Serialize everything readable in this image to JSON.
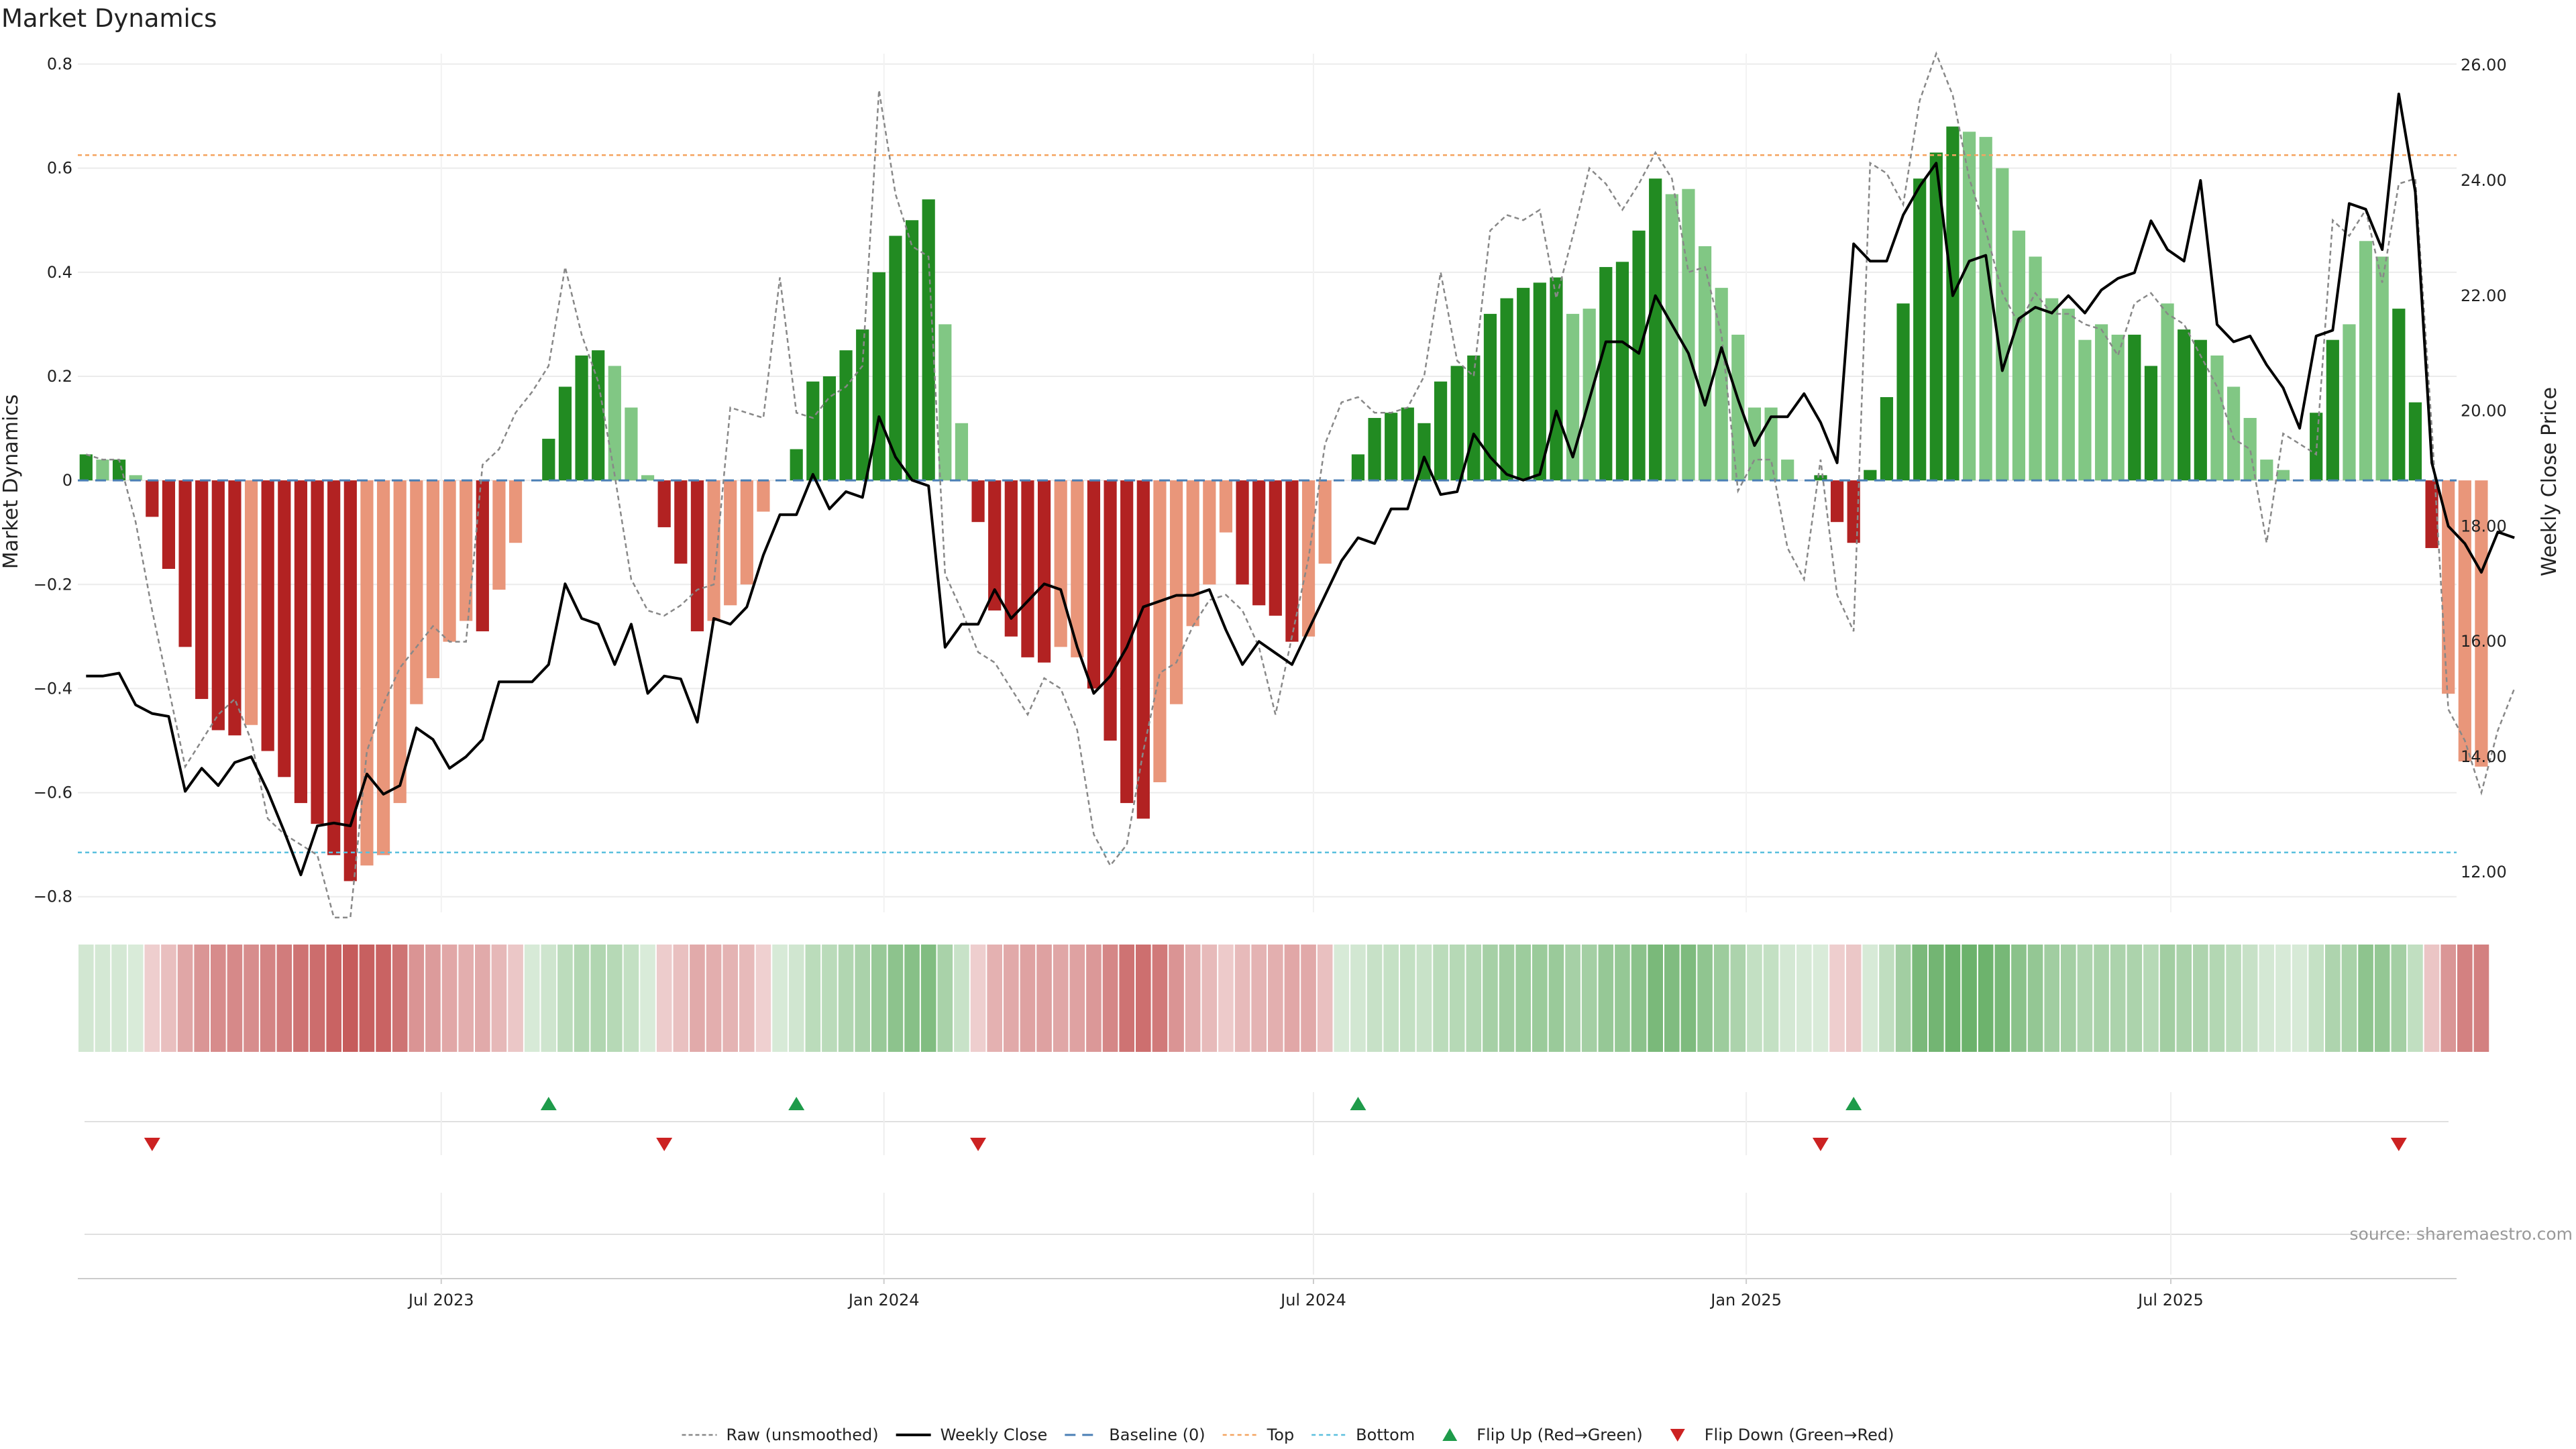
{
  "chart_data": {
    "type": "bar",
    "title": "Market Dynamics",
    "ylabel": "Market Dynamics",
    "y2label": "Weekly Close Price",
    "ylim": [
      -0.83,
      0.82
    ],
    "y2lim": [
      11.3,
      26.2
    ],
    "yticks": [
      "0.8",
      "0.6",
      "0.4",
      "0.2",
      "0",
      "−0.2",
      "−0.4",
      "−0.6",
      "−0.8"
    ],
    "yticks_values": [
      0.8,
      0.6,
      0.4,
      0.2,
      0,
      -0.2,
      -0.4,
      -0.6,
      -0.8
    ],
    "y2ticks": [
      "26.00",
      "24.00",
      "22.00",
      "20.00",
      "18.00",
      "16.00",
      "14.00",
      "12.00"
    ],
    "y2ticks_values": [
      26,
      24,
      22,
      20,
      18,
      16,
      14,
      12
    ],
    "xticks": [
      {
        "label": "Jul 2023",
        "week": 22
      },
      {
        "label": "Jan 2024",
        "week": 48.8
      },
      {
        "label": "Jul 2024",
        "week": 74.8
      },
      {
        "label": "Jan 2025",
        "week": 101
      },
      {
        "label": "Jul 2025",
        "week": 126.7
      }
    ],
    "n_weeks": 144,
    "top_line": 0.625,
    "bottom_line": -0.715,
    "grid": true,
    "legend_position": "bottom-center",
    "colors": {
      "strong_green": "#228b22",
      "light_green": "#81c784",
      "strong_red": "#b22222",
      "light_red": "#e9967a",
      "close_line": "#000000",
      "raw_line": "#888888",
      "baseline": "#4a7fb5",
      "top": "#f4a460",
      "bottom": "#5bc0de",
      "flip_up": "#1e9b4a",
      "flip_down": "#cc2222"
    },
    "histogram": [
      0.05,
      0.04,
      0.04,
      0.01,
      -0.07,
      -0.17,
      -0.32,
      -0.42,
      -0.48,
      -0.49,
      -0.47,
      -0.52,
      -0.57,
      -0.62,
      -0.66,
      -0.72,
      -0.77,
      -0.74,
      -0.72,
      -0.62,
      -0.43,
      -0.38,
      -0.31,
      -0.27,
      -0.29,
      -0.21,
      -0.12,
      0.0,
      0.08,
      0.18,
      0.24,
      0.25,
      0.22,
      0.14,
      0.01,
      -0.09,
      -0.16,
      -0.29,
      -0.27,
      -0.24,
      -0.2,
      -0.06,
      0.0,
      0.06,
      0.19,
      0.2,
      0.25,
      0.29,
      0.4,
      0.47,
      0.5,
      0.54,
      0.3,
      0.11,
      -0.08,
      -0.25,
      -0.3,
      -0.34,
      -0.35,
      -0.32,
      -0.34,
      -0.4,
      -0.5,
      -0.62,
      -0.65,
      -0.58,
      -0.43,
      -0.28,
      -0.2,
      -0.1,
      -0.2,
      -0.24,
      -0.26,
      -0.31,
      -0.3,
      -0.16,
      0.0,
      0.05,
      0.12,
      0.13,
      0.14,
      0.11,
      0.19,
      0.22,
      0.24,
      0.32,
      0.35,
      0.37,
      0.38,
      0.39,
      0.32,
      0.33,
      0.41,
      0.42,
      0.48,
      0.58,
      0.55,
      0.56,
      0.45,
      0.37,
      0.28,
      0.14,
      0.14,
      0.04,
      0.0,
      0.01,
      -0.08,
      -0.12,
      0.02,
      0.16,
      0.34,
      0.58,
      0.63,
      0.68,
      0.67,
      0.66,
      0.6,
      0.48,
      0.43,
      0.35,
      0.33,
      0.27,
      0.3,
      0.28,
      0.28,
      0.22,
      0.34,
      0.29,
      0.27,
      0.24,
      0.18,
      0.12,
      0.04,
      0.02,
      0.0,
      0.13,
      0.27,
      0.3,
      0.46,
      0.43,
      0.33,
      0.15,
      -0.13,
      -0.41,
      -0.54,
      -0.55
    ],
    "histogram_strength": [
      "s",
      "l",
      "s",
      "l",
      "s",
      "s",
      "s",
      "s",
      "s",
      "s",
      "l",
      "s",
      "s",
      "s",
      "s",
      "s",
      "s",
      "l",
      "l",
      "l",
      "l",
      "l",
      "l",
      "l",
      "s",
      "l",
      "l",
      "s",
      "s",
      "s",
      "s",
      "s",
      "l",
      "l",
      "l",
      "s",
      "s",
      "s",
      "l",
      "l",
      "l",
      "l",
      "s",
      "s",
      "s",
      "s",
      "s",
      "s",
      "s",
      "s",
      "s",
      "s",
      "l",
      "l",
      "s",
      "s",
      "s",
      "s",
      "s",
      "l",
      "l",
      "s",
      "s",
      "s",
      "s",
      "l",
      "l",
      "l",
      "l",
      "l",
      "s",
      "s",
      "s",
      "s",
      "l",
      "l",
      "s",
      "s",
      "s",
      "s",
      "s",
      "s",
      "s",
      "s",
      "s",
      "s",
      "s",
      "s",
      "s",
      "s",
      "l",
      "l",
      "s",
      "s",
      "s",
      "s",
      "l",
      "l",
      "l",
      "l",
      "l",
      "l",
      "l",
      "l",
      "s",
      "s",
      "s",
      "s",
      "s",
      "s",
      "s",
      "s",
      "s",
      "s",
      "l",
      "l",
      "l",
      "l",
      "l",
      "l",
      "l",
      "l",
      "l",
      "l",
      "s",
      "s",
      "l",
      "s",
      "s",
      "l",
      "l",
      "l",
      "l",
      "l",
      "s",
      "s",
      "s",
      "l",
      "l",
      "l",
      "s",
      "s",
      "s",
      "l"
    ],
    "weekly_close": [
      15.4,
      15.4,
      15.45,
      14.9,
      14.75,
      14.7,
      13.4,
      13.8,
      13.5,
      13.9,
      14.0,
      13.4,
      12.7,
      11.95,
      12.8,
      12.85,
      12.8,
      13.7,
      13.35,
      13.5,
      14.5,
      14.3,
      13.8,
      14.0,
      14.3,
      15.3,
      15.3,
      15.3,
      15.6,
      17.0,
      16.4,
      16.3,
      15.6,
      16.3,
      15.1,
      15.4,
      15.35,
      14.6,
      16.4,
      16.3,
      16.6,
      17.5,
      18.2,
      18.2,
      18.9,
      18.3,
      18.6,
      18.5,
      19.9,
      19.2,
      18.8,
      18.7,
      15.9,
      16.3,
      16.3,
      16.9,
      16.4,
      16.7,
      17.0,
      16.9,
      15.9,
      15.1,
      15.4,
      15.9,
      16.6,
      16.7,
      16.8,
      16.8,
      16.9,
      16.2,
      15.6,
      16.0,
      15.8,
      15.6,
      16.2,
      16.8,
      17.4,
      17.8,
      17.7,
      18.3,
      18.3,
      19.2,
      18.55,
      18.6,
      19.6,
      19.2,
      18.9,
      18.8,
      18.9,
      20.0,
      19.2,
      20.2,
      21.2,
      21.2,
      21.0,
      22.0,
      21.5,
      21.0,
      20.1,
      21.1,
      20.2,
      19.4,
      19.9,
      19.9,
      20.3,
      19.8,
      19.1,
      22.9,
      22.6,
      22.6,
      23.4,
      23.9,
      24.3,
      22.0,
      22.6,
      22.7,
      20.7,
      21.6,
      21.8,
      21.7,
      22.0,
      21.7,
      22.1,
      22.3,
      22.4,
      23.3,
      22.8,
      22.6,
      24.0,
      21.5,
      21.2,
      21.3,
      20.8,
      20.4,
      19.7,
      21.3,
      21.4,
      23.6,
      23.5,
      22.8,
      25.5,
      23.8,
      19.1,
      18.0,
      17.7,
      17.2,
      17.9,
      17.8
    ],
    "raw": [
      0.05,
      0.04,
      0.04,
      -0.08,
      -0.25,
      -0.4,
      -0.55,
      -0.5,
      -0.45,
      -0.42,
      -0.5,
      -0.65,
      -0.68,
      -0.7,
      -0.72,
      -0.84,
      -0.84,
      -0.52,
      -0.43,
      -0.36,
      -0.32,
      -0.28,
      -0.31,
      -0.31,
      0.03,
      0.06,
      0.13,
      0.17,
      0.22,
      0.41,
      0.28,
      0.19,
      0.01,
      -0.19,
      -0.25,
      -0.26,
      -0.24,
      -0.21,
      -0.2,
      0.14,
      0.13,
      0.12,
      0.39,
      0.13,
      0.12,
      0.16,
      0.18,
      0.22,
      0.75,
      0.55,
      0.45,
      0.43,
      -0.18,
      -0.25,
      -0.33,
      -0.35,
      -0.4,
      -0.45,
      -0.38,
      -0.4,
      -0.48,
      -0.68,
      -0.74,
      -0.7,
      -0.52,
      -0.37,
      -0.35,
      -0.28,
      -0.23,
      -0.22,
      -0.25,
      -0.32,
      -0.45,
      -0.3,
      -0.15,
      0.07,
      0.15,
      0.16,
      0.13,
      0.13,
      0.14,
      0.2,
      0.4,
      0.23,
      0.2,
      0.48,
      0.51,
      0.5,
      0.52,
      0.35,
      0.47,
      0.6,
      0.57,
      0.52,
      0.57,
      0.63,
      0.58,
      0.4,
      0.41,
      0.28,
      -0.02,
      0.04,
      0.04,
      -0.13,
      -0.19,
      0.04,
      -0.22,
      -0.29,
      0.61,
      0.59,
      0.53,
      0.73,
      0.82,
      0.74,
      0.58,
      0.48,
      0.36,
      0.3,
      0.36,
      0.32,
      0.32,
      0.3,
      0.29,
      0.24,
      0.34,
      0.36,
      0.32,
      0.3,
      0.24,
      0.18,
      0.08,
      0.06,
      -0.12,
      0.09,
      0.07,
      0.05,
      0.5,
      0.47,
      0.52,
      0.38,
      0.57,
      0.58,
      0.1,
      -0.44,
      -0.5,
      -0.6,
      -0.48,
      -0.4
    ],
    "heatmap": [
      0.05,
      0.04,
      0.04,
      0.01,
      -0.07,
      -0.17,
      -0.32,
      -0.42,
      -0.48,
      -0.49,
      -0.47,
      -0.52,
      -0.57,
      -0.62,
      -0.66,
      -0.72,
      -0.77,
      -0.74,
      -0.72,
      -0.62,
      -0.43,
      -0.38,
      -0.31,
      -0.27,
      -0.29,
      -0.21,
      -0.12,
      0.02,
      0.08,
      0.18,
      0.24,
      0.25,
      0.22,
      0.14,
      0.01,
      -0.09,
      -0.16,
      -0.29,
      -0.27,
      -0.24,
      -0.2,
      -0.06,
      0.02,
      0.06,
      0.19,
      0.2,
      0.25,
      0.29,
      0.4,
      0.47,
      0.5,
      0.54,
      0.3,
      0.11,
      -0.08,
      -0.25,
      -0.3,
      -0.34,
      -0.35,
      -0.32,
      -0.34,
      -0.4,
      -0.5,
      -0.62,
      -0.65,
      -0.58,
      -0.43,
      -0.28,
      -0.2,
      -0.1,
      -0.2,
      -0.24,
      -0.26,
      -0.31,
      -0.3,
      -0.16,
      0.02,
      0.05,
      0.12,
      0.13,
      0.14,
      0.11,
      0.19,
      0.22,
      0.24,
      0.32,
      0.35,
      0.37,
      0.38,
      0.39,
      0.32,
      0.33,
      0.41,
      0.42,
      0.48,
      0.58,
      0.55,
      0.56,
      0.45,
      0.37,
      0.28,
      0.14,
      0.14,
      0.04,
      0.02,
      0.01,
      -0.08,
      -0.12,
      0.02,
      0.16,
      0.34,
      0.58,
      0.63,
      0.68,
      0.67,
      0.66,
      0.6,
      0.48,
      0.43,
      0.35,
      0.33,
      0.27,
      0.3,
      0.28,
      0.28,
      0.22,
      0.34,
      0.29,
      0.27,
      0.24,
      0.18,
      0.12,
      0.04,
      0.02,
      0.02,
      0.13,
      0.27,
      0.3,
      0.46,
      0.43,
      0.33,
      0.15,
      -0.13,
      -0.41,
      -0.54,
      -0.55
    ],
    "flip_up_weeks": [
      28,
      43,
      77,
      107
    ],
    "flip_down_weeks": [
      4,
      35,
      54,
      105,
      140
    ],
    "source": "source: sharemaestro.com",
    "legend": [
      {
        "key": "raw",
        "label": "Raw (unsmoothed)"
      },
      {
        "key": "close",
        "label": "Weekly Close"
      },
      {
        "key": "baseline",
        "label": "Baseline (0)"
      },
      {
        "key": "top",
        "label": "Top"
      },
      {
        "key": "bottom",
        "label": "Bottom"
      },
      {
        "key": "flip_up",
        "label": "Flip Up (Red→Green)"
      },
      {
        "key": "flip_down",
        "label": "Flip Down (Green→Red)"
      }
    ]
  }
}
